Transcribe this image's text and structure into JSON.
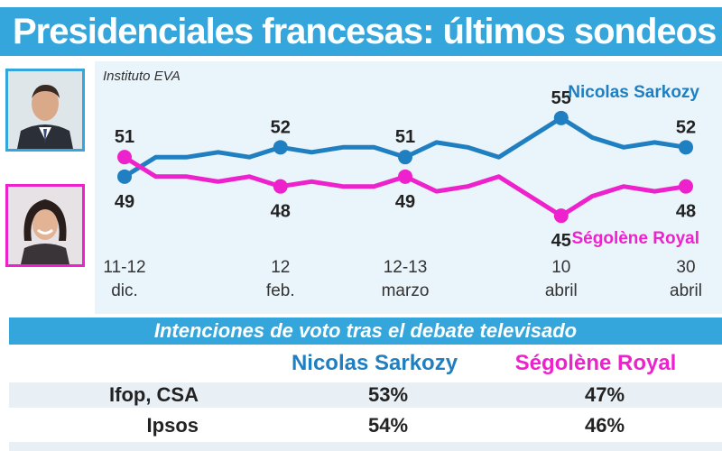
{
  "title": "Presidenciales francesas: últimos sondeos",
  "source": "Instituto EVA",
  "colors": {
    "accent": "#35a6dc",
    "sarkozy": "#1f7fc0",
    "royal": "#ee22cc",
    "chart_bg": "#eaf4fb"
  },
  "chart_data": {
    "type": "line",
    "x": [
      "11-12 dic.",
      "",
      "",
      "",
      "",
      "12 feb.",
      "",
      "",
      "",
      "12-13 marzo",
      "",
      "",
      "",
      "",
      "10 abril",
      "",
      "",
      "",
      "30 abril"
    ],
    "x_labels": [
      {
        "index": 0,
        "line1": "11-12",
        "line2": "dic."
      },
      {
        "index": 5,
        "line1": "12",
        "line2": "feb."
      },
      {
        "index": 9,
        "line1": "12-13",
        "line2": "marzo"
      },
      {
        "index": 14,
        "line1": "10",
        "line2": "abril"
      },
      {
        "index": 18,
        "line1": "30",
        "line2": "abril"
      }
    ],
    "series": [
      {
        "name": "Nicolas Sarkozy",
        "values": [
          49,
          51,
          51,
          51.5,
          51,
          52,
          51.5,
          52,
          52,
          51,
          52.5,
          52,
          51,
          53,
          55,
          53,
          52,
          52.5,
          52
        ],
        "labels": [
          {
            "index": 0,
            "text": "49",
            "pos": "below"
          },
          {
            "index": 5,
            "text": "52",
            "pos": "above"
          },
          {
            "index": 9,
            "text": "51",
            "pos": "above"
          },
          {
            "index": 14,
            "text": "55",
            "pos": "above"
          },
          {
            "index": 18,
            "text": "52",
            "pos": "above"
          }
        ]
      },
      {
        "name": "Ségolène Royal",
        "values": [
          51,
          49,
          49,
          48.5,
          49,
          48,
          48.5,
          48,
          48,
          49,
          47.5,
          48,
          49,
          47,
          45,
          47,
          48,
          47.5,
          48
        ],
        "labels": [
          {
            "index": 0,
            "text": "51",
            "pos": "above"
          },
          {
            "index": 5,
            "text": "48",
            "pos": "below"
          },
          {
            "index": 9,
            "text": "49",
            "pos": "below"
          },
          {
            "index": 14,
            "text": "45",
            "pos": "below"
          },
          {
            "index": 18,
            "text": "48",
            "pos": "below"
          }
        ]
      }
    ],
    "markers": [
      0,
      5,
      9,
      14,
      18
    ],
    "ylim": [
      44,
      56
    ],
    "legend": "next-to-lines"
  },
  "table": {
    "header": "Intenciones de voto tras el debate televisado",
    "columns": [
      "Nicolas Sarkozy",
      "Ségolène Royal"
    ],
    "rows": [
      {
        "name": "Ifop, CSA",
        "sarkozy": "53%",
        "royal": "47%"
      },
      {
        "name": "Ipsos",
        "sarkozy": "54%",
        "royal": "46%"
      }
    ]
  }
}
